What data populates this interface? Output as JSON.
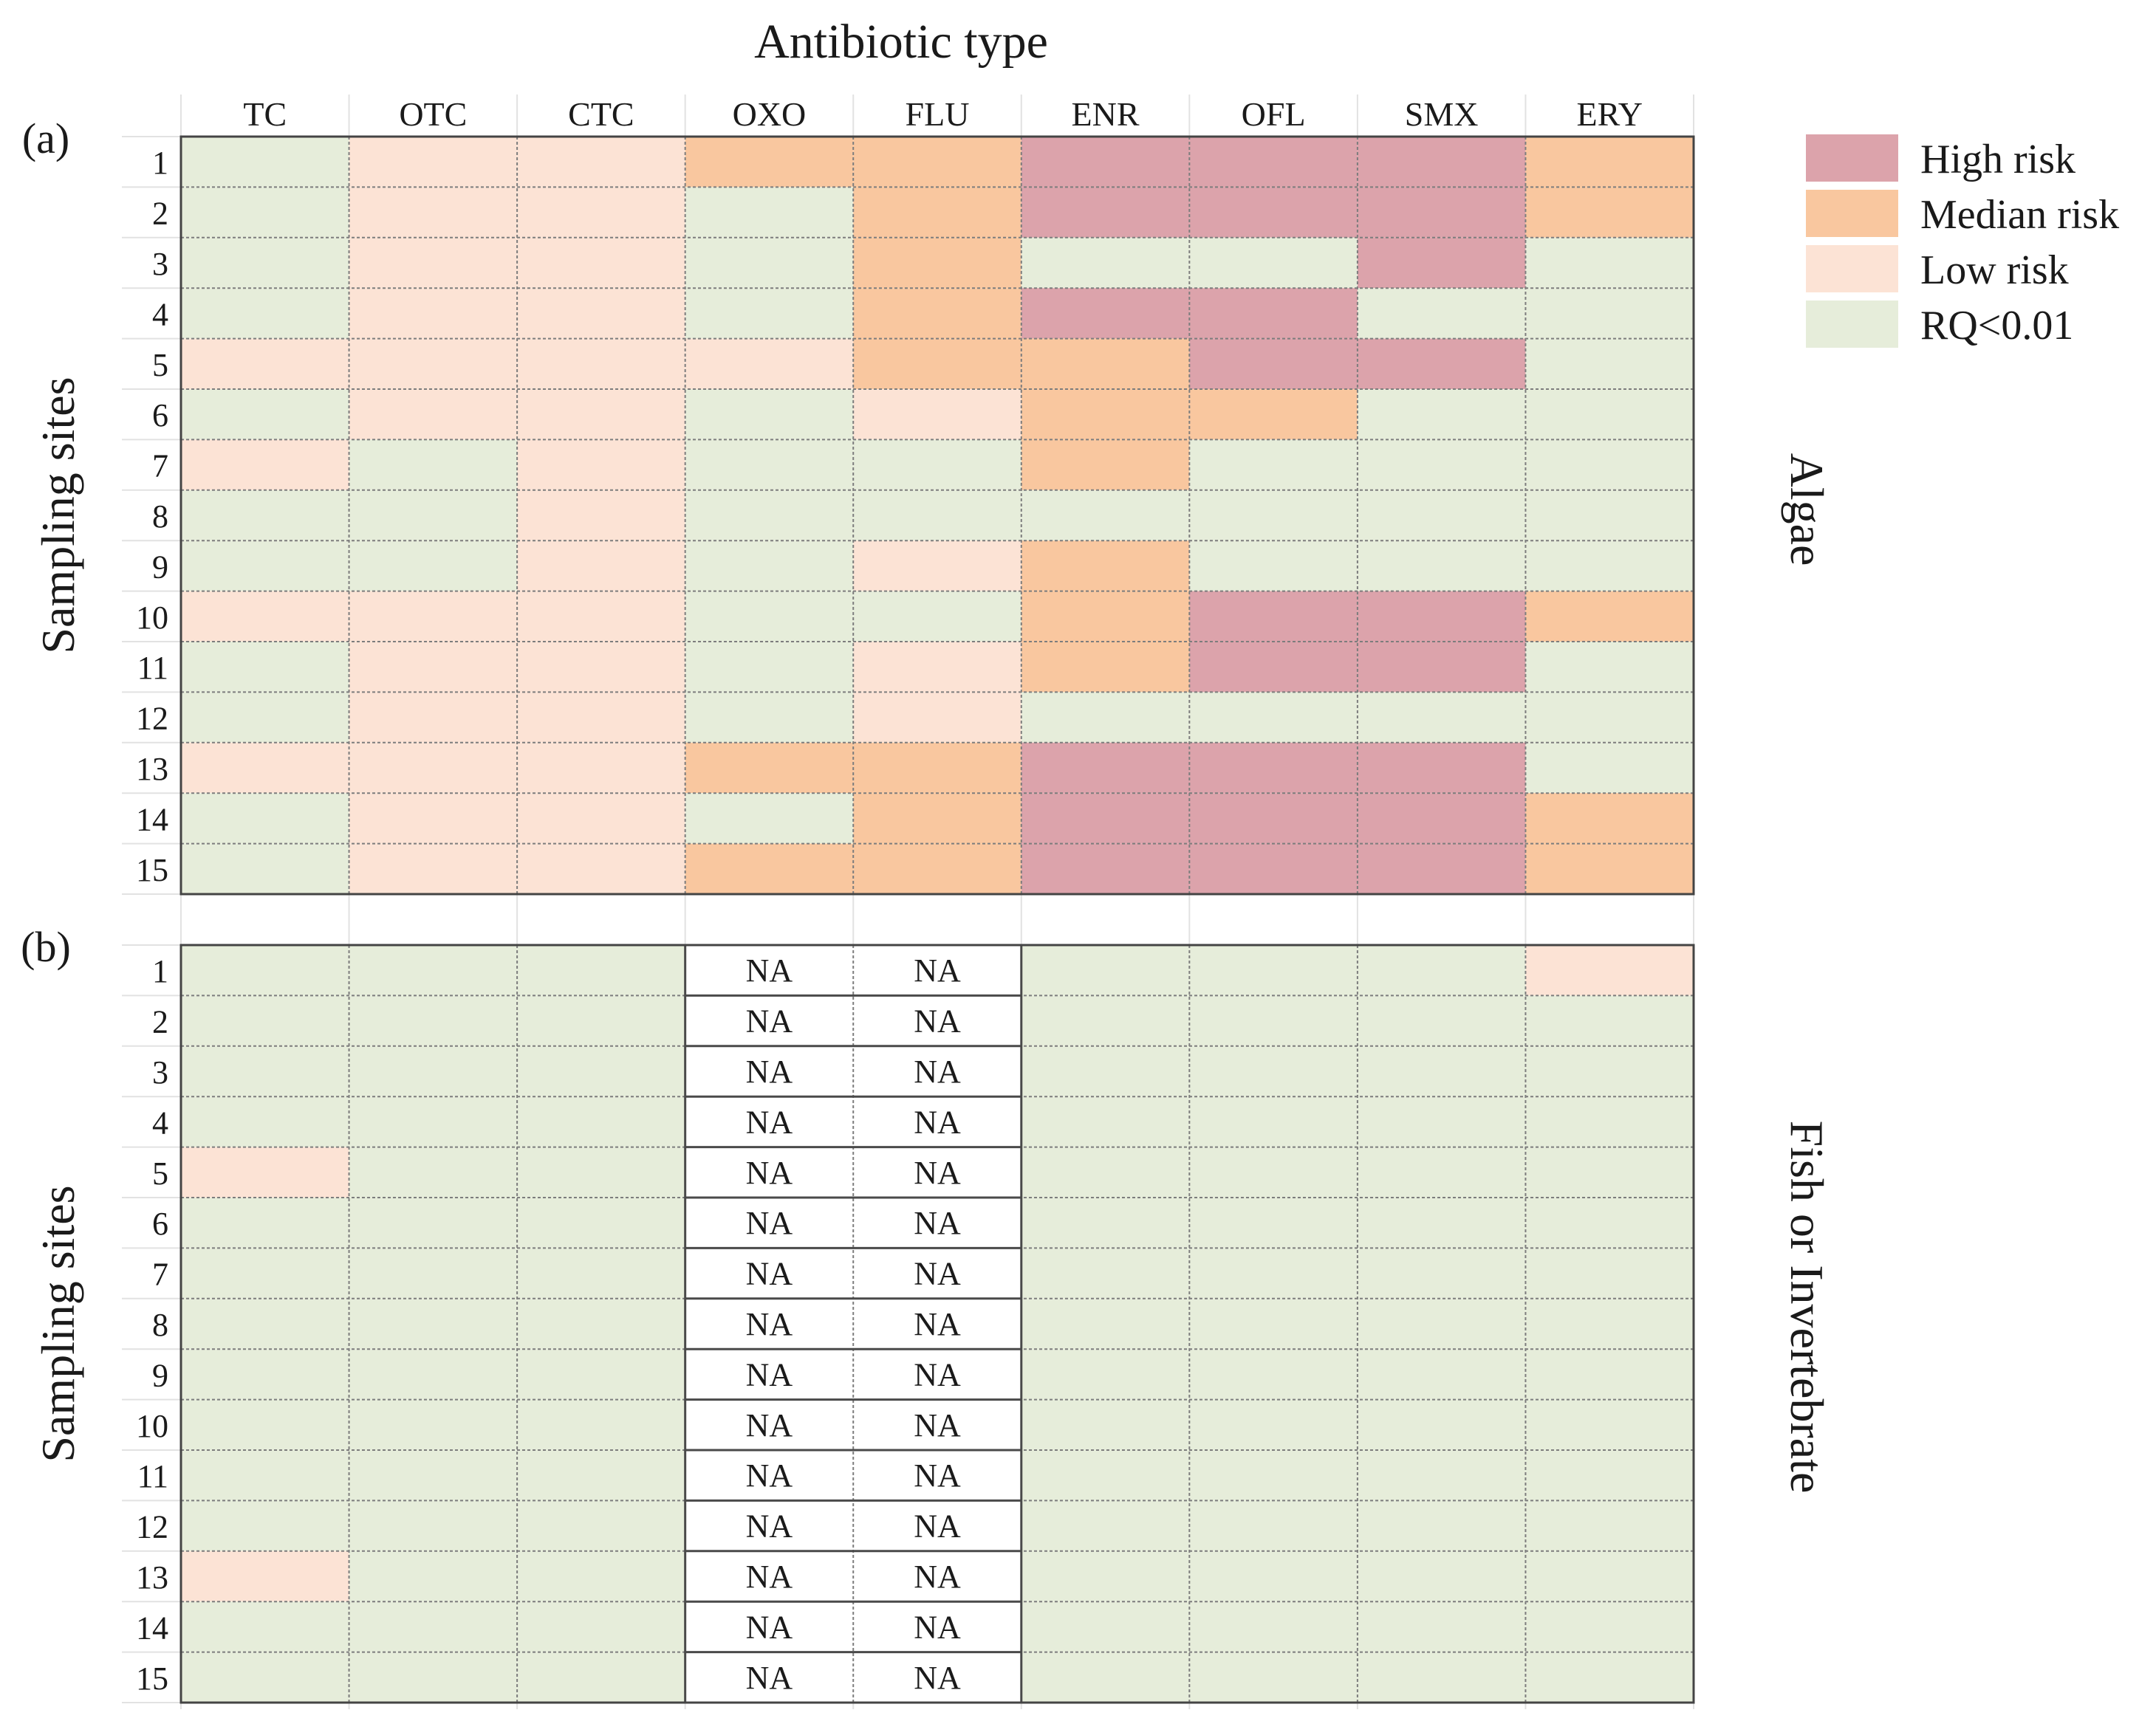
{
  "chart_data": {
    "type": "heatmap",
    "title": "Antibiotic type",
    "categories": [
      "TC",
      "OTC",
      "CTC",
      "OXO",
      "FLU",
      "ENR",
      "OFL",
      "SMX",
      "ERY"
    ],
    "rows": [
      "1",
      "2",
      "3",
      "4",
      "5",
      "6",
      "7",
      "8",
      "9",
      "10",
      "11",
      "12",
      "13",
      "14",
      "15"
    ],
    "ylabel": "Sampling sites",
    "legend": {
      "placement": "top-right",
      "items": [
        {
          "key": "high",
          "label": "High risk",
          "color": "#dca3ab"
        },
        {
          "key": "median",
          "label": "Median risk",
          "color": "#f9c79f"
        },
        {
          "key": "low",
          "label": "Low risk",
          "color": "#fce3d5"
        },
        {
          "key": "none",
          "label": "RQ<0.01",
          "color": "#e6edda"
        }
      ]
    },
    "panels": [
      {
        "tag": "(a)",
        "side_label": "Algae",
        "ylabel": "Sampling sites",
        "cells": [
          [
            "none",
            "low",
            "low",
            "median",
            "median",
            "high",
            "high",
            "high",
            "median"
          ],
          [
            "none",
            "low",
            "low",
            "none",
            "median",
            "high",
            "high",
            "high",
            "median"
          ],
          [
            "none",
            "low",
            "low",
            "none",
            "median",
            "none",
            "none",
            "high",
            "none"
          ],
          [
            "none",
            "low",
            "low",
            "none",
            "median",
            "high",
            "high",
            "none",
            "none"
          ],
          [
            "low",
            "low",
            "low",
            "low",
            "median",
            "median",
            "high",
            "high",
            "none"
          ],
          [
            "none",
            "low",
            "low",
            "none",
            "low",
            "median",
            "median",
            "none",
            "none"
          ],
          [
            "low",
            "none",
            "low",
            "none",
            "none",
            "median",
            "none",
            "none",
            "none"
          ],
          [
            "none",
            "none",
            "low",
            "none",
            "none",
            "none",
            "none",
            "none",
            "none"
          ],
          [
            "none",
            "none",
            "low",
            "none",
            "low",
            "median",
            "none",
            "none",
            "none"
          ],
          [
            "low",
            "low",
            "low",
            "none",
            "none",
            "median",
            "high",
            "high",
            "median"
          ],
          [
            "none",
            "low",
            "low",
            "none",
            "low",
            "median",
            "high",
            "high",
            "none"
          ],
          [
            "none",
            "low",
            "low",
            "none",
            "low",
            "none",
            "none",
            "none",
            "none"
          ],
          [
            "low",
            "low",
            "low",
            "median",
            "median",
            "high",
            "high",
            "high",
            "none"
          ],
          [
            "none",
            "low",
            "low",
            "none",
            "median",
            "high",
            "high",
            "high",
            "median"
          ],
          [
            "none",
            "low",
            "low",
            "median",
            "median",
            "high",
            "high",
            "high",
            "median"
          ]
        ]
      },
      {
        "tag": "(b)",
        "side_label": "Fish or Invertebrate",
        "ylabel": "Sampling sites",
        "na_label": "NA",
        "cells": [
          [
            "none",
            "none",
            "none",
            "na",
            "na",
            "none",
            "none",
            "none",
            "low"
          ],
          [
            "none",
            "none",
            "none",
            "na",
            "na",
            "none",
            "none",
            "none",
            "none"
          ],
          [
            "none",
            "none",
            "none",
            "na",
            "na",
            "none",
            "none",
            "none",
            "none"
          ],
          [
            "none",
            "none",
            "none",
            "na",
            "na",
            "none",
            "none",
            "none",
            "none"
          ],
          [
            "low",
            "none",
            "none",
            "na",
            "na",
            "none",
            "none",
            "none",
            "none"
          ],
          [
            "none",
            "none",
            "none",
            "na",
            "na",
            "none",
            "none",
            "none",
            "none"
          ],
          [
            "none",
            "none",
            "none",
            "na",
            "na",
            "none",
            "none",
            "none",
            "none"
          ],
          [
            "none",
            "none",
            "none",
            "na",
            "na",
            "none",
            "none",
            "none",
            "none"
          ],
          [
            "none",
            "none",
            "none",
            "na",
            "na",
            "none",
            "none",
            "none",
            "none"
          ],
          [
            "none",
            "none",
            "none",
            "na",
            "na",
            "none",
            "none",
            "none",
            "none"
          ],
          [
            "none",
            "none",
            "none",
            "na",
            "na",
            "none",
            "none",
            "none",
            "none"
          ],
          [
            "none",
            "none",
            "none",
            "na",
            "na",
            "none",
            "none",
            "none",
            "none"
          ],
          [
            "low",
            "none",
            "none",
            "na",
            "na",
            "none",
            "none",
            "none",
            "none"
          ],
          [
            "none",
            "none",
            "none",
            "na",
            "na",
            "none",
            "none",
            "none",
            "none"
          ],
          [
            "none",
            "none",
            "none",
            "na",
            "na",
            "none",
            "none",
            "none",
            "none"
          ]
        ]
      }
    ]
  }
}
